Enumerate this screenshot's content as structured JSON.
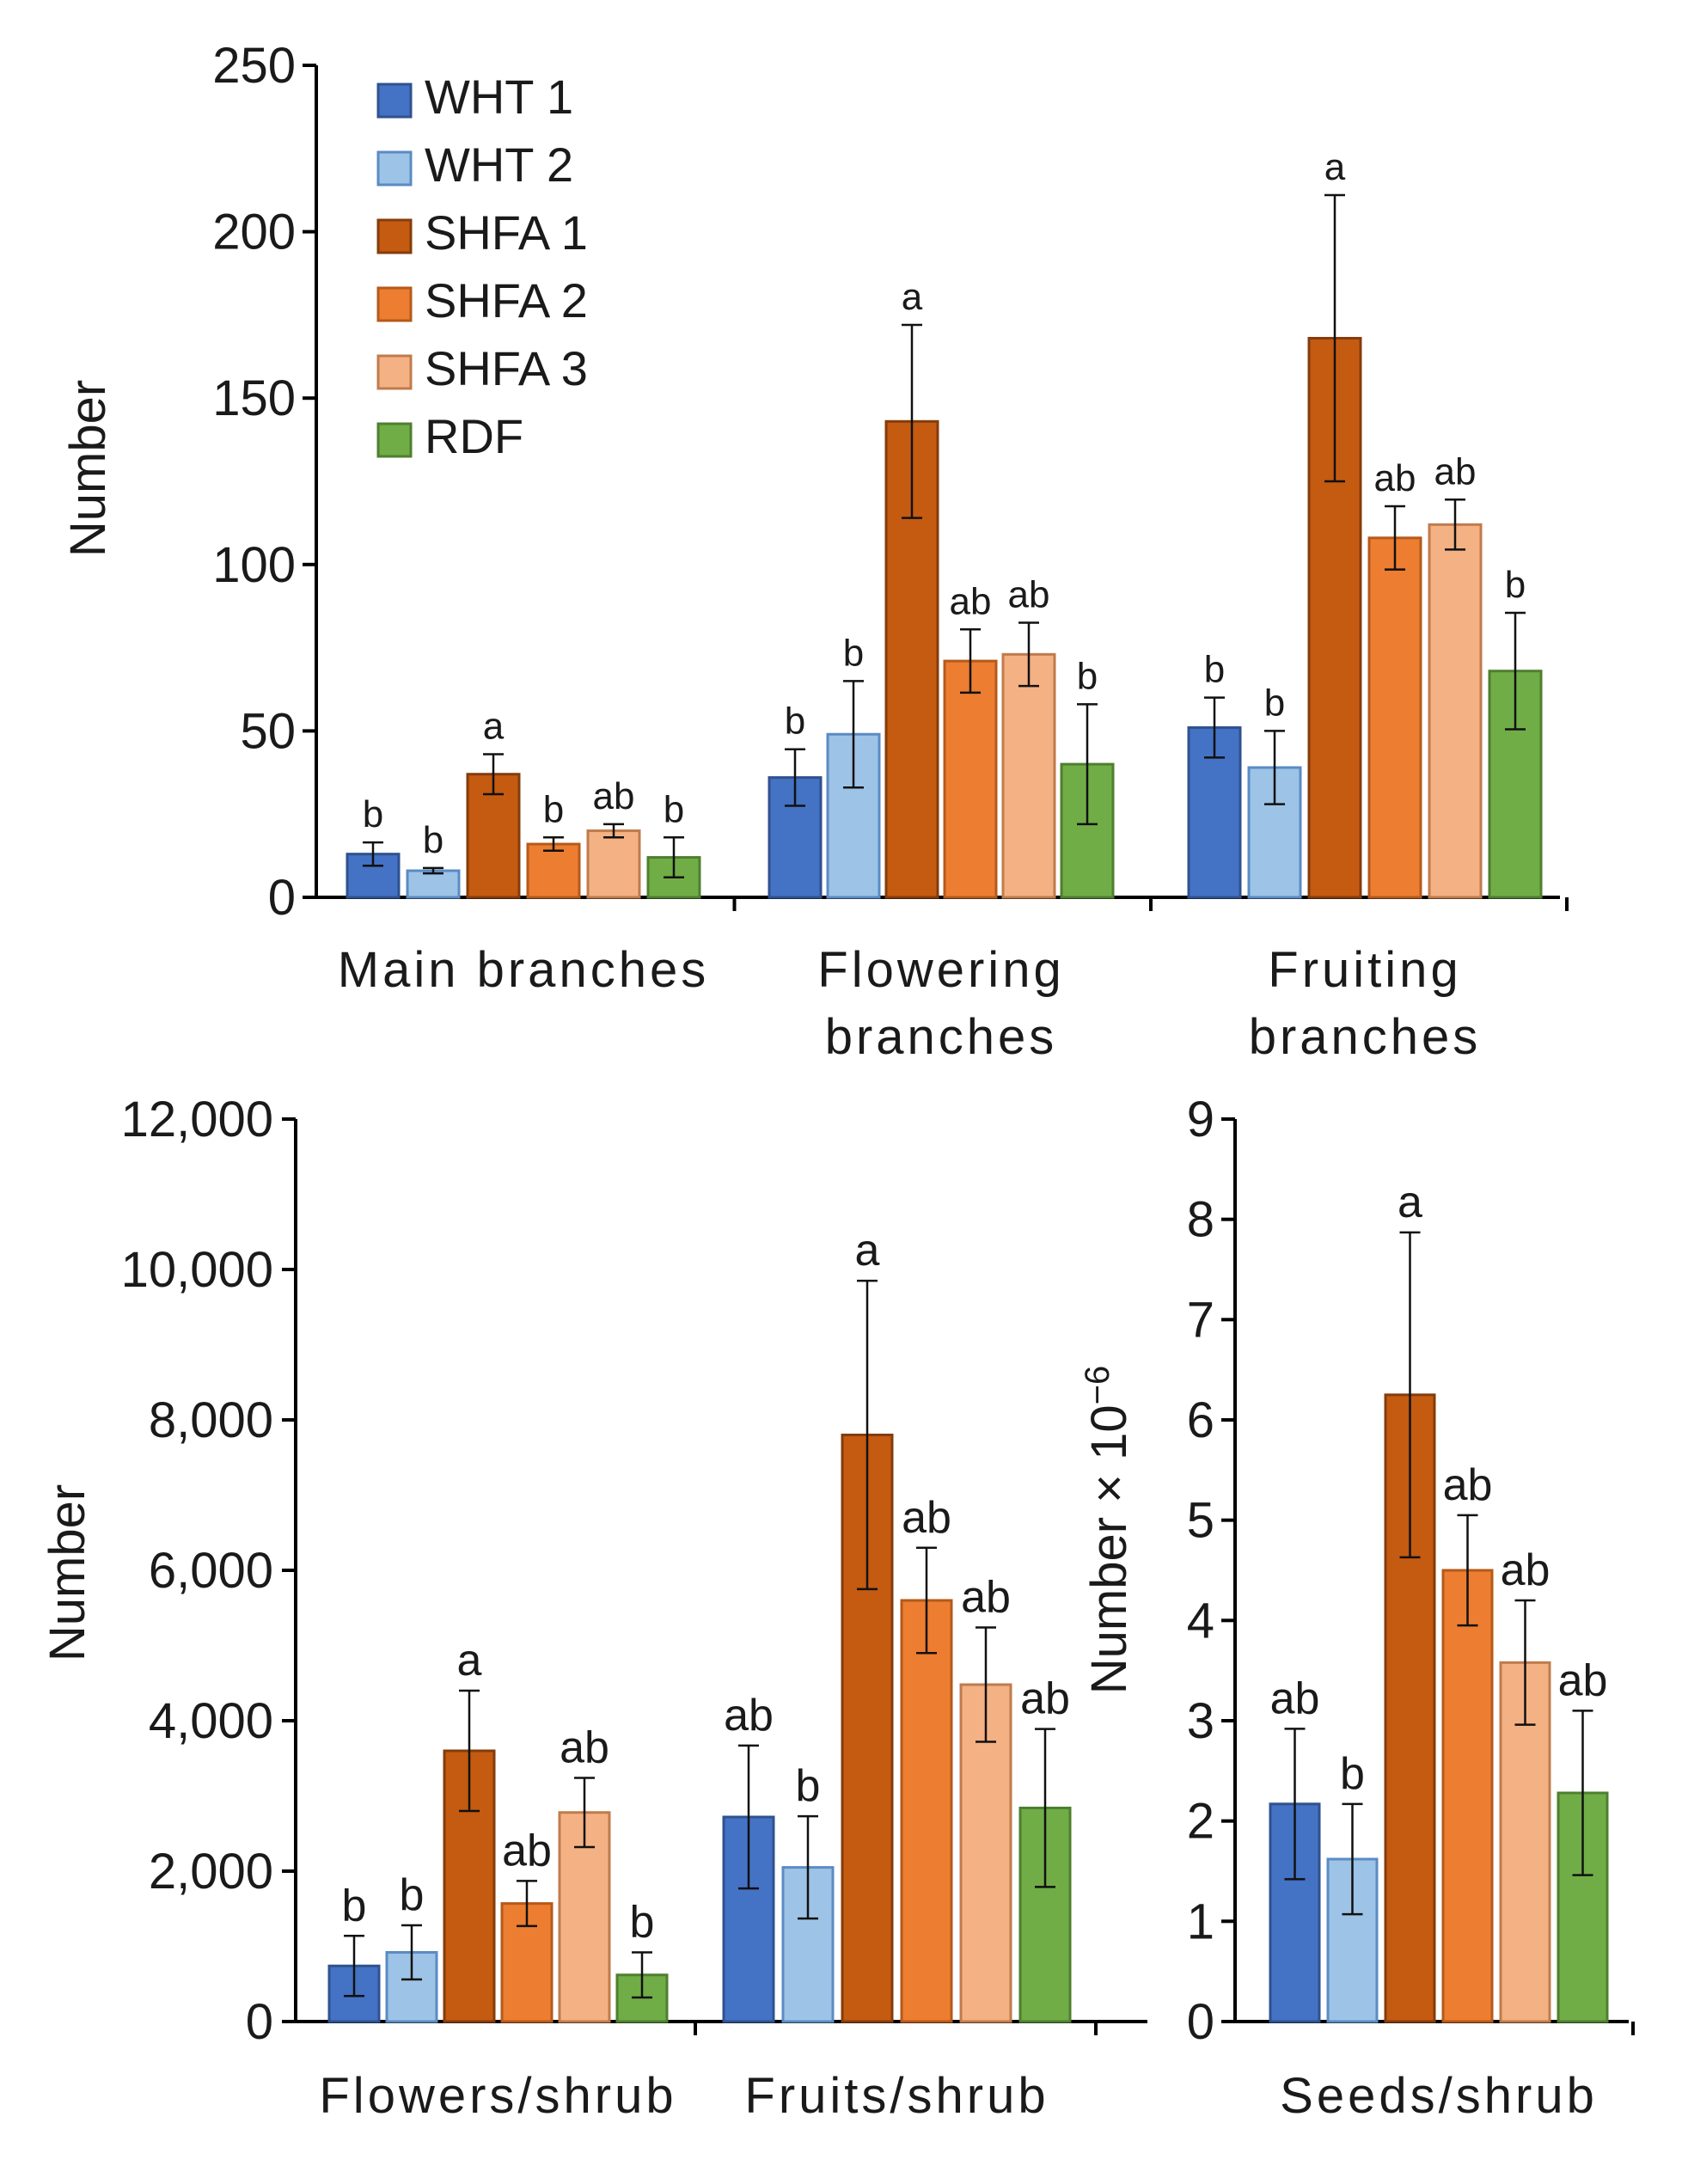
{
  "legend": [
    {
      "name": "WHT 1",
      "color": "#4472C4",
      "edge": "#2F528F"
    },
    {
      "name": "WHT 2",
      "color": "#9DC3E6",
      "edge": "#5B8BC4"
    },
    {
      "name": "SHFA 1",
      "color": "#C55A11",
      "edge": "#843C0C"
    },
    {
      "name": "SHFA 2",
      "color": "#ED7D31",
      "edge": "#B55A1A"
    },
    {
      "name": "SHFA 3",
      "color": "#F4B183",
      "edge": "#C07B4C"
    },
    {
      "name": "RDF",
      "color": "#70AD47",
      "edge": "#4E7F2F"
    }
  ],
  "chart_data": [
    {
      "type": "bar",
      "ylabel": "Number",
      "ylim": [
        0,
        250
      ],
      "yticks": [
        0,
        50,
        100,
        150,
        200,
        250
      ],
      "ytick_labels": [
        "0",
        "50",
        "100",
        "150",
        "200",
        "250"
      ],
      "categories": [
        [
          "Main branches"
        ],
        [
          "Flowering",
          "branches"
        ],
        [
          "Fruiting",
          "branches"
        ]
      ],
      "series": [
        {
          "name": "WHT 1",
          "values": [
            13,
            36,
            51
          ],
          "errors": [
            3.5,
            8.5,
            9
          ],
          "letters": [
            "b",
            "b",
            "b"
          ]
        },
        {
          "name": "WHT 2",
          "values": [
            8,
            49,
            39
          ],
          "errors": [
            0.8,
            16,
            11
          ],
          "letters": [
            "b",
            "b",
            "b"
          ]
        },
        {
          "name": "SHFA 1",
          "values": [
            37,
            143,
            168
          ],
          "errors": [
            6,
            29,
            43
          ],
          "letters": [
            "a",
            "a",
            "a"
          ]
        },
        {
          "name": "SHFA 2",
          "values": [
            16,
            71,
            108
          ],
          "errors": [
            2,
            9.5,
            9.5
          ],
          "letters": [
            "b",
            "ab",
            "ab"
          ]
        },
        {
          "name": "SHFA 3",
          "values": [
            20,
            73,
            112
          ],
          "errors": [
            2,
            9.5,
            7.5
          ],
          "letters": [
            "ab",
            "ab",
            "ab"
          ]
        },
        {
          "name": "RDF",
          "values": [
            12,
            40,
            68
          ],
          "errors": [
            6,
            18,
            17.5
          ],
          "letters": [
            "b",
            "b",
            "b"
          ]
        }
      ]
    },
    {
      "type": "bar",
      "ylabel": "Number",
      "ylim": [
        0,
        12000
      ],
      "yticks": [
        0,
        2000,
        4000,
        6000,
        8000,
        10000,
        12000
      ],
      "ytick_labels": [
        "0",
        "2,000",
        "4,000",
        "6,000",
        "8,000",
        "10,000",
        "12,000"
      ],
      "categories": [
        [
          "Flowers/shrub"
        ],
        [
          "Fruits/shrub"
        ]
      ],
      "series": [
        {
          "name": "WHT 1",
          "values": [
            740,
            2720
          ],
          "errors": [
            400,
            950
          ],
          "letters": [
            "b",
            "ab"
          ]
        },
        {
          "name": "WHT 2",
          "values": [
            920,
            2050
          ],
          "errors": [
            360,
            680
          ],
          "letters": [
            "b",
            "b"
          ]
        },
        {
          "name": "SHFA 1",
          "values": [
            3600,
            7800
          ],
          "errors": [
            800,
            2050
          ],
          "letters": [
            "a",
            "a"
          ]
        },
        {
          "name": "SHFA 2",
          "values": [
            1570,
            5600
          ],
          "errors": [
            300,
            700
          ],
          "letters": [
            "ab",
            "ab"
          ]
        },
        {
          "name": "SHFA 3",
          "values": [
            2780,
            4480
          ],
          "errors": [
            460,
            760
          ],
          "letters": [
            "ab",
            "ab"
          ]
        },
        {
          "name": "RDF",
          "values": [
            620,
            2840
          ],
          "errors": [
            300,
            1050
          ],
          "letters": [
            "b",
            "ab"
          ]
        }
      ]
    },
    {
      "type": "bar",
      "ylabel": "Number × 10",
      "ylabel_sup": "−6",
      "ylim": [
        0,
        9
      ],
      "yticks": [
        0,
        1,
        2,
        3,
        4,
        5,
        6,
        7,
        8,
        9
      ],
      "ytick_labels": [
        "0",
        "1",
        "2",
        "3",
        "4",
        "5",
        "6",
        "7",
        "8",
        "9"
      ],
      "categories": [
        [
          "Seeds/shrub"
        ]
      ],
      "series": [
        {
          "name": "WHT 1",
          "values": [
            2.17
          ],
          "errors": [
            0.75
          ],
          "letters": [
            "ab"
          ]
        },
        {
          "name": "WHT 2",
          "values": [
            1.62
          ],
          "errors": [
            0.55
          ],
          "letters": [
            "b"
          ]
        },
        {
          "name": "SHFA 1",
          "values": [
            6.25
          ],
          "errors": [
            1.62
          ],
          "letters": [
            "a"
          ]
        },
        {
          "name": "SHFA 2",
          "values": [
            4.5
          ],
          "errors": [
            0.55
          ],
          "letters": [
            "ab"
          ]
        },
        {
          "name": "SHFA 3",
          "values": [
            3.58
          ],
          "errors": [
            0.62
          ],
          "letters": [
            "ab"
          ]
        },
        {
          "name": "RDF",
          "values": [
            2.28
          ],
          "errors": [
            0.82
          ],
          "letters": [
            "ab"
          ]
        }
      ]
    }
  ]
}
